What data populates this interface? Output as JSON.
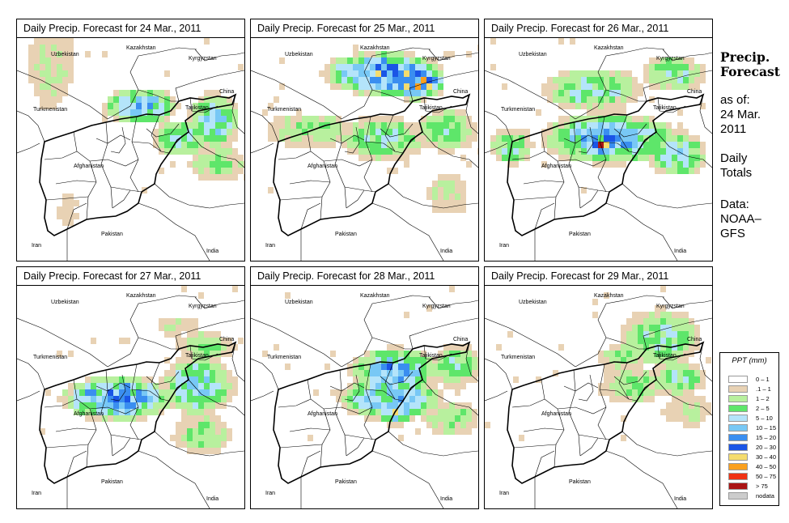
{
  "panels": [
    {
      "title": "Daily Precip. Forecast for  24 Mar., 2011",
      "date": "24 Mar., 2011"
    },
    {
      "title": "Daily Precip. Forecast for  25 Mar., 2011",
      "date": "25 Mar., 2011"
    },
    {
      "title": "Daily Precip. Forecast for  26 Mar., 2011",
      "date": "26 Mar., 2011"
    },
    {
      "title": "Daily Precip. Forecast for  27 Mar., 2011",
      "date": "27 Mar., 2011"
    },
    {
      "title": "Daily Precip. Forecast for  28 Mar., 2011",
      "date": "28 Mar., 2011"
    },
    {
      "title": "Daily Precip. Forecast for  29 Mar., 2011",
      "date": "29 Mar., 2011"
    }
  ],
  "map_labels": {
    "kazakhstan": "Kazakhstan",
    "uzbekistan": "Uzbekistan",
    "kyrgyzstan": "Kyrgyzstan",
    "china": "China",
    "turkmenistan": "Turkmenistan",
    "tajikistan": "Tajikistan",
    "afghanistan": "Afghanistan",
    "pakistan": "Pakistan",
    "iran": "Iran",
    "india": "India"
  },
  "sidebar": {
    "title_line1": "Precip.",
    "title_line2": "Forecast",
    "asof_line1": "as of:",
    "asof_line2": "24 Mar.",
    "asof_line3": "2011",
    "totals_line1": "Daily",
    "totals_line2": "Totals",
    "data_line1": "Data:",
    "data_line2": "NOAA–",
    "data_line3": "GFS"
  },
  "legend": {
    "title": "PPT (mm)",
    "items": [
      {
        "label": "0 – 1",
        "color": "#ffffff"
      },
      {
        "label": ".1 – 1",
        "color": "#e8d2b4"
      },
      {
        "label": "1 – 2",
        "color": "#b8f09e"
      },
      {
        "label": "2 – 5",
        "color": "#5ee66a"
      },
      {
        "label": "5 – 10",
        "color": "#b4e4fa"
      },
      {
        "label": "10 – 15",
        "color": "#78c8f5"
      },
      {
        "label": "15 – 20",
        "color": "#3a8ef0"
      },
      {
        "label": "20 – 30",
        "color": "#1a55e6"
      },
      {
        "label": "30 – 40",
        "color": "#f5dc6e"
      },
      {
        "label": "40 – 50",
        "color": "#faa01e"
      },
      {
        "label": "50 – 75",
        "color": "#f03214"
      },
      {
        "label": "> 75",
        "color": "#aa1414"
      },
      {
        "label": "nodata",
        "color": "#cccccc"
      }
    ]
  }
}
